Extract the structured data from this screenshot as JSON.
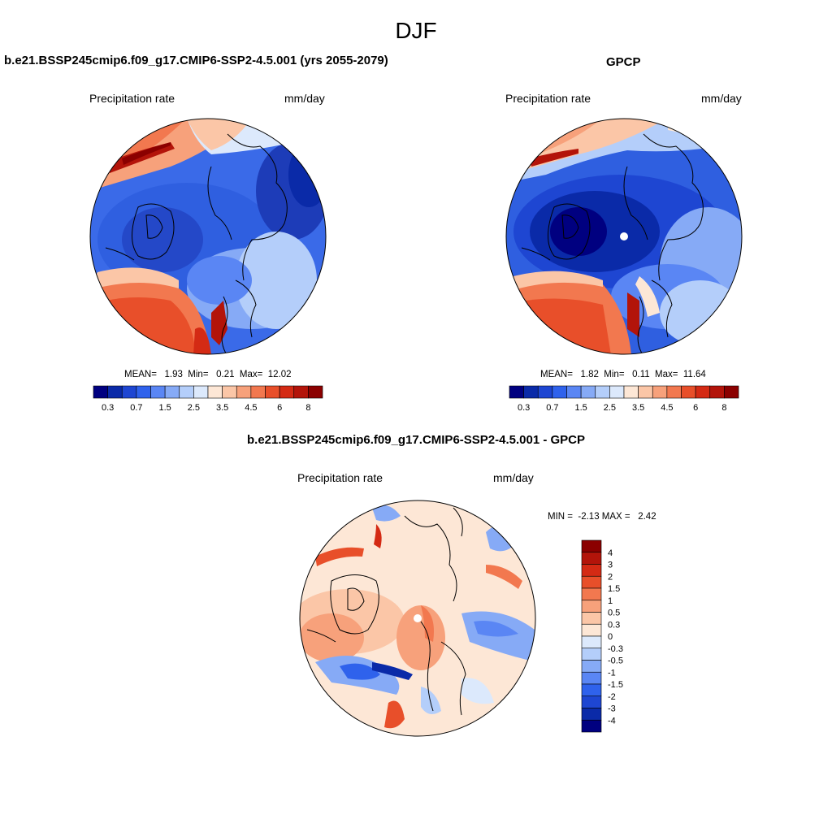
{
  "season": "DJF",
  "colors": {
    "abs_palette": [
      "#000080",
      "#0a2aa8",
      "#1e46d2",
      "#2f62ec",
      "#5a86f4",
      "#86aaf6",
      "#b4cefa",
      "#dce9fc",
      "#fde7d6",
      "#fbc6a7",
      "#f7a17b",
      "#f2784f",
      "#e84f2a",
      "#d42a14",
      "#b3140a",
      "#8b0000"
    ],
    "diff_palette": [
      "#000080",
      "#0a2aa8",
      "#1e46d2",
      "#2f62ec",
      "#5a86f4",
      "#86aaf6",
      "#b4cefa",
      "#dce9fc",
      "#fde7d6",
      "#fbc6a7",
      "#f7a17b",
      "#f2784f",
      "#e84f2a",
      "#d42a14",
      "#b3140a",
      "#8b0000"
    ]
  },
  "panels": {
    "model": {
      "title": "b.e21.BSSP245cmip6.f09_g17.CMIP6-SSP2-4.5.001 (yrs 2055-2079)",
      "left_label": "Precipitation rate",
      "right_label": "mm/day",
      "stats": "MEAN=   1.93  Min=   0.21  Max=  12.02",
      "mean": 1.93,
      "min": 0.21,
      "max": 12.02
    },
    "obs": {
      "title": "GPCP",
      "left_label": "Precipitation rate",
      "right_label": "mm/day",
      "stats": "MEAN=   1.82  Min=   0.11  Max=  11.64",
      "mean": 1.82,
      "min": 0.11,
      "max": 11.64
    },
    "diff": {
      "title": "b.e21.BSSP245cmip6.f09_g17.CMIP6-SSP2-4.5.001 - GPCP",
      "left_label": "Precipitation rate",
      "right_label": "mm/day",
      "stats": "MIN =  -2.13 MAX =   2.42",
      "min": -2.13,
      "max": 2.42
    }
  },
  "abs_colorbar_ticks": [
    "0.3",
    "0.7",
    "1.5",
    "2.5",
    "3.5",
    "4.5",
    "6",
    "8"
  ],
  "diff_colorbar_levels": [
    "4",
    "3",
    "2",
    "1.5",
    "1",
    "0.5",
    "0.3",
    "0",
    "-0.3",
    "-0.5",
    "-1",
    "-1.5",
    "-2",
    "-3",
    "-4"
  ]
}
